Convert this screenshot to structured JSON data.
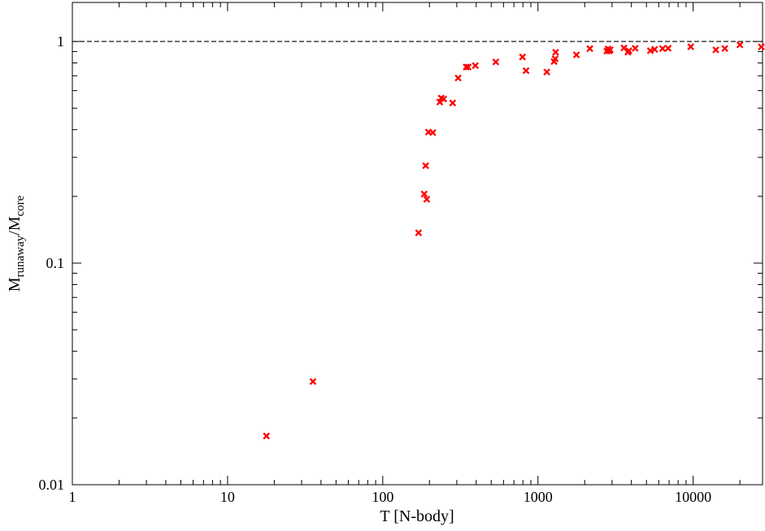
{
  "chart_data": {
    "type": "scatter",
    "title": "",
    "xlabel": "T [N-body]",
    "ylabel": {
      "main": "M",
      "sub1": "runaway",
      "slash": "/M",
      "sub2": "core"
    },
    "xscale": "log",
    "yscale": "log",
    "xlim": [
      1,
      28000
    ],
    "ylim": [
      0.01,
      1.5
    ],
    "x_ticks": [
      {
        "value": 1,
        "label": "1"
      },
      {
        "value": 10,
        "label": "10"
      },
      {
        "value": 100,
        "label": "100"
      },
      {
        "value": 1000,
        "label": "1000"
      },
      {
        "value": 10000,
        "label": "10000"
      }
    ],
    "y_ticks": [
      {
        "value": 0.01,
        "label": "0.01"
      },
      {
        "value": 0.1,
        "label": "0.1"
      },
      {
        "value": 1,
        "label": "1"
      }
    ],
    "reference_line": {
      "y": 1,
      "style": "dashed",
      "color": "#000000"
    },
    "marker": {
      "shape": "x",
      "color": "#ff0000"
    },
    "series": [
      {
        "points": [
          [
            17.8,
            0.0166
          ],
          [
            35.5,
            0.0292
          ],
          [
            170,
            0.137
          ],
          [
            185,
            0.205
          ],
          [
            189,
            0.275
          ],
          [
            192,
            0.194
          ],
          [
            197,
            0.39
          ],
          [
            210,
            0.388
          ],
          [
            233,
            0.533
          ],
          [
            238,
            0.555
          ],
          [
            247,
            0.55
          ],
          [
            282,
            0.528
          ],
          [
            306,
            0.684
          ],
          [
            345,
            0.767
          ],
          [
            355,
            0.767
          ],
          [
            395,
            0.778
          ],
          [
            535,
            0.808
          ],
          [
            795,
            0.851
          ],
          [
            838,
            0.738
          ],
          [
            1140,
            0.728
          ],
          [
            1270,
            0.812
          ],
          [
            1290,
            0.835
          ],
          [
            1300,
            0.893
          ],
          [
            1770,
            0.87
          ],
          [
            2160,
            0.928
          ],
          [
            2780,
            0.905
          ],
          [
            2830,
            0.925
          ],
          [
            2880,
            0.907
          ],
          [
            2920,
            0.917
          ],
          [
            3580,
            0.935
          ],
          [
            3800,
            0.894
          ],
          [
            3850,
            0.909
          ],
          [
            4230,
            0.932
          ],
          [
            5300,
            0.909
          ],
          [
            5650,
            0.921
          ],
          [
            6350,
            0.929
          ],
          [
            6900,
            0.932
          ],
          [
            9650,
            0.947
          ],
          [
            14000,
            0.916
          ],
          [
            16000,
            0.93
          ],
          [
            20000,
            0.966
          ],
          [
            27500,
            0.946
          ]
        ]
      }
    ]
  }
}
